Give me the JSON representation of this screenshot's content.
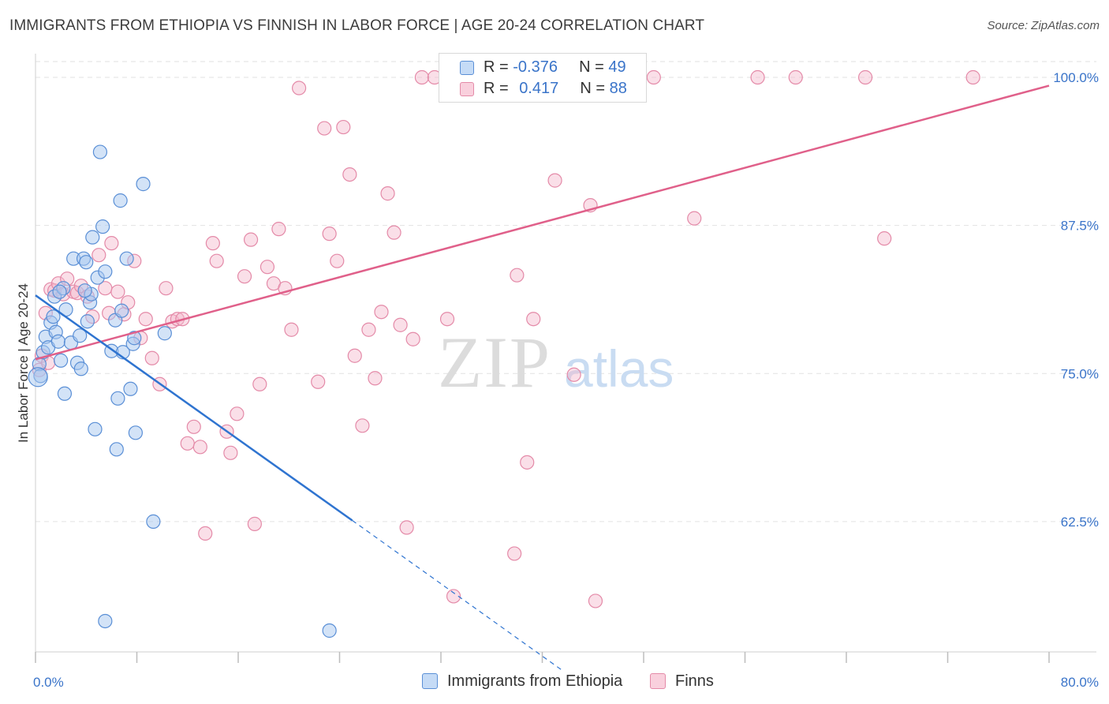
{
  "title": "IMMIGRANTS FROM ETHIOPIA VS FINNISH IN LABOR FORCE | AGE 20-24 CORRELATION CHART",
  "source": "Source: ZipAtlas.com",
  "watermark": {
    "zip": "ZIP",
    "atlas": "atlas"
  },
  "legend": {
    "series1": {
      "r_label": "R = ",
      "r_value": "-0.376",
      "n_label": "N = ",
      "n_value": "49"
    },
    "series2": {
      "r_label": "R = ",
      "r_value": "0.417",
      "n_label": "N = ",
      "n_value": "88"
    }
  },
  "colors": {
    "blue_fill": "#a8c8f0",
    "blue_stroke": "#5a8fd6",
    "blue_line": "#2f74d0",
    "pink_fill": "#f5b8cc",
    "pink_stroke": "#e48aa8",
    "pink_line": "#e0608a",
    "tick_text": "#3a74c9",
    "grid": "#e2e2e2"
  },
  "chart_data": {
    "type": "scatter",
    "title": "IMMIGRANTS FROM ETHIOPIA VS FINNISH IN LABOR FORCE | AGE 20-24 CORRELATION CHART",
    "xlabel": "",
    "ylabel": "In Labor Force | Age 20-24",
    "xlim": [
      0,
      80
    ],
    "ylim": [
      51.5,
      102
    ],
    "x_tick_labels": [
      "0.0%",
      "80.0%"
    ],
    "y_ticks": [
      62.5,
      75.0,
      87.5,
      100.0
    ],
    "y_tick_labels": [
      "62.5%",
      "75.0%",
      "87.5%",
      "100.0%"
    ],
    "grid": true,
    "legend_position": "top-center",
    "series": [
      {
        "name": "Immigrants from Ethiopia",
        "color": "#a8c8f0",
        "trend": {
          "x": [
            0,
            25
          ],
          "y": [
            81.6,
            62.6
          ],
          "dashed_to": [
            41.5,
            50
          ]
        },
        "points": [
          [
            0.3,
            75.8
          ],
          [
            0.4,
            74.8
          ],
          [
            0.6,
            76.8
          ],
          [
            0.8,
            78.1
          ],
          [
            1.0,
            77.2
          ],
          [
            1.2,
            79.3
          ],
          [
            1.4,
            79.8
          ],
          [
            1.5,
            81.5
          ],
          [
            1.6,
            78.5
          ],
          [
            1.8,
            77.7
          ],
          [
            2.0,
            76.1
          ],
          [
            2.2,
            82.2
          ],
          [
            2.4,
            80.4
          ],
          [
            2.3,
            73.3
          ],
          [
            2.8,
            77.6
          ],
          [
            3.0,
            84.7
          ],
          [
            3.3,
            75.9
          ],
          [
            3.5,
            78.2
          ],
          [
            3.6,
            75.4
          ],
          [
            3.8,
            84.7
          ],
          [
            4.0,
            84.4
          ],
          [
            4.1,
            79.4
          ],
          [
            4.3,
            81.0
          ],
          [
            4.4,
            81.7
          ],
          [
            4.5,
            86.5
          ],
          [
            4.7,
            70.3
          ],
          [
            4.9,
            83.1
          ],
          [
            5.1,
            93.7
          ],
          [
            5.3,
            87.4
          ],
          [
            5.5,
            83.6
          ],
          [
            6.0,
            76.9
          ],
          [
            6.3,
            79.5
          ],
          [
            6.4,
            68.6
          ],
          [
            6.5,
            72.9
          ],
          [
            6.7,
            89.6
          ],
          [
            6.8,
            80.3
          ],
          [
            6.9,
            76.8
          ],
          [
            7.2,
            84.7
          ],
          [
            7.5,
            73.7
          ],
          [
            7.7,
            77.5
          ],
          [
            7.8,
            78.0
          ],
          [
            7.9,
            70.0
          ],
          [
            8.5,
            91.0
          ],
          [
            9.3,
            62.5
          ],
          [
            10.2,
            78.4
          ],
          [
            5.5,
            54.1
          ],
          [
            23.2,
            53.3
          ],
          [
            1.9,
            81.9
          ],
          [
            3.9,
            82.0
          ]
        ]
      },
      {
        "name": "Finns",
        "color": "#f5b8cc",
        "trend": {
          "x": [
            0,
            80
          ],
          "y": [
            76.2,
            99.3
          ]
        },
        "points": [
          [
            0.3,
            75.3
          ],
          [
            0.5,
            76.5
          ],
          [
            0.8,
            80.1
          ],
          [
            1.0,
            75.9
          ],
          [
            1.2,
            82.1
          ],
          [
            1.5,
            82.0
          ],
          [
            1.8,
            82.6
          ],
          [
            2.2,
            81.7
          ],
          [
            2.5,
            83.0
          ],
          [
            3.0,
            81.9
          ],
          [
            3.3,
            81.8
          ],
          [
            3.6,
            82.4
          ],
          [
            4.1,
            81.5
          ],
          [
            4.5,
            79.8
          ],
          [
            5.0,
            85.0
          ],
          [
            5.5,
            82.2
          ],
          [
            5.8,
            80.1
          ],
          [
            6.0,
            86.0
          ],
          [
            6.5,
            81.9
          ],
          [
            7.0,
            80.0
          ],
          [
            7.3,
            81.0
          ],
          [
            7.8,
            84.5
          ],
          [
            8.3,
            78.0
          ],
          [
            8.7,
            79.6
          ],
          [
            9.2,
            76.3
          ],
          [
            9.8,
            74.1
          ],
          [
            10.3,
            82.2
          ],
          [
            10.8,
            79.4
          ],
          [
            11.2,
            79.6
          ],
          [
            11.6,
            79.6
          ],
          [
            12.0,
            69.1
          ],
          [
            12.5,
            70.5
          ],
          [
            13.0,
            68.8
          ],
          [
            13.4,
            61.5
          ],
          [
            14.0,
            86.0
          ],
          [
            14.3,
            84.5
          ],
          [
            15.1,
            70.1
          ],
          [
            15.4,
            68.3
          ],
          [
            15.9,
            71.6
          ],
          [
            16.5,
            83.2
          ],
          [
            17.0,
            86.3
          ],
          [
            17.3,
            62.3
          ],
          [
            17.7,
            74.1
          ],
          [
            18.3,
            84.0
          ],
          [
            18.8,
            82.6
          ],
          [
            19.2,
            87.2
          ],
          [
            19.7,
            82.2
          ],
          [
            20.2,
            78.7
          ],
          [
            20.8,
            99.1
          ],
          [
            22.3,
            74.3
          ],
          [
            22.8,
            95.7
          ],
          [
            23.2,
            86.8
          ],
          [
            23.8,
            84.5
          ],
          [
            24.3,
            95.8
          ],
          [
            24.8,
            91.8
          ],
          [
            25.2,
            76.5
          ],
          [
            25.8,
            70.6
          ],
          [
            26.3,
            78.7
          ],
          [
            26.8,
            74.6
          ],
          [
            27.3,
            80.2
          ],
          [
            27.8,
            90.2
          ],
          [
            28.3,
            86.9
          ],
          [
            28.8,
            79.1
          ],
          [
            29.3,
            62.0
          ],
          [
            29.8,
            77.9
          ],
          [
            30.5,
            100.0
          ],
          [
            31.5,
            100.0
          ],
          [
            32.5,
            79.6
          ],
          [
            33.0,
            56.2
          ],
          [
            35.0,
            100.0
          ],
          [
            37.5,
            100.0
          ],
          [
            37.8,
            59.8
          ],
          [
            38.0,
            83.3
          ],
          [
            38.8,
            67.5
          ],
          [
            39.3,
            79.6
          ],
          [
            39.8,
            100.0
          ],
          [
            41.0,
            91.3
          ],
          [
            41.5,
            100.0
          ],
          [
            42.5,
            74.9
          ],
          [
            43.8,
            89.2
          ],
          [
            44.2,
            55.8
          ],
          [
            47.0,
            100.0
          ],
          [
            48.8,
            100.0
          ],
          [
            52.0,
            88.1
          ],
          [
            57.0,
            100.0
          ],
          [
            60.0,
            100.0
          ],
          [
            65.5,
            100.0
          ],
          [
            67.0,
            86.4
          ],
          [
            74.0,
            100.0
          ]
        ]
      }
    ]
  },
  "bottom_legend": {
    "series1": "Immigrants from Ethiopia",
    "series2": "Finns"
  }
}
